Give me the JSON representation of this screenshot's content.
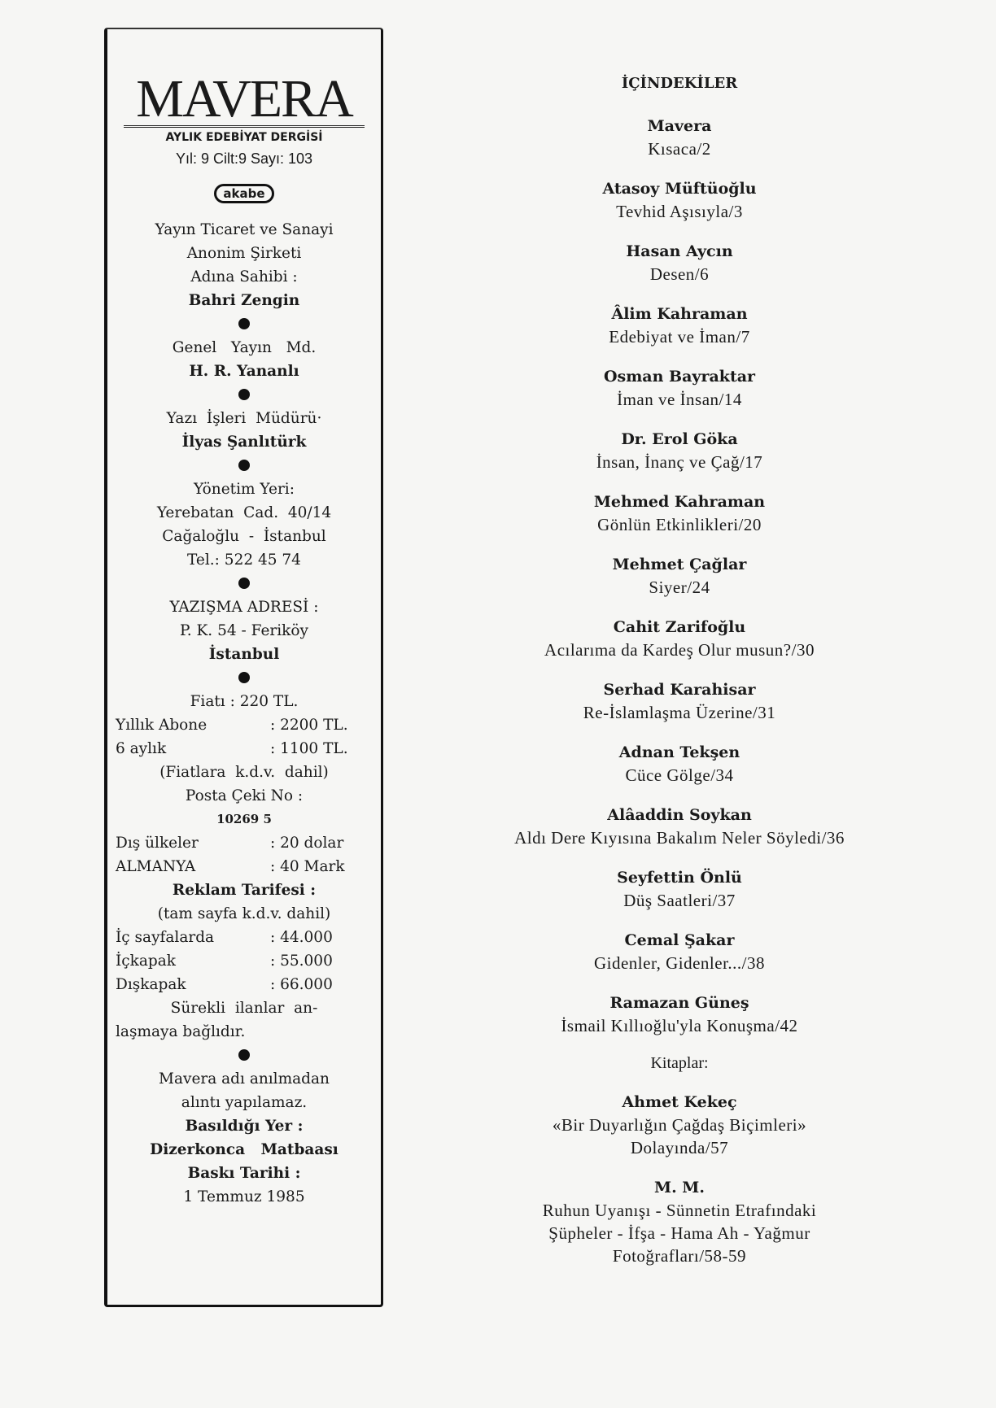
{
  "masthead": {
    "logo": "MAVERA",
    "subtitle": "AYLIK EDEBİYAT DERGİSİ",
    "issue": "Yıl: 9  Cilt:9  Sayı: 103",
    "publisher_logo": "akabe"
  },
  "imprint": {
    "owner_lines": [
      "Yayın Ticaret ve Sanayi",
      "Anonim Şirketi",
      "Adına Sahibi :"
    ],
    "owner": "Bahri Zengin",
    "gm_label": "Genel   Yayın   Md.",
    "gm": "H. R. Yananlı",
    "editor_label": "Yazı  İşleri  Müdürü·",
    "editor": "İlyas Şanlıtürk",
    "office_label": "Yönetim Yeri:",
    "office_lines": [
      "Yerebatan  Cad.  40/14",
      "Cağaloğlu  -  İstanbul",
      "Tel.: 522 45 74"
    ],
    "mail_label": "YAZIŞMA ADRESİ :",
    "mail_lines": [
      "P. K. 54 - Feriköy",
      "İstanbul"
    ],
    "price": "Fiatı : 220 TL.",
    "subs": [
      {
        "k": "Yıllık Abone",
        "v": ": 2200 TL."
      },
      {
        "k": "6 aylık",
        "v": ": 1100 TL."
      }
    ],
    "vat": "(Fiatlara  k.d.v.  dahil)",
    "postal_label": "Posta Çeki No :",
    "postal_no": "10269 5",
    "abroad": [
      {
        "k": "Dış ülkeler",
        "v": ": 20 dolar"
      },
      {
        "k": "ALMANYA",
        "v": ": 40 Mark"
      }
    ],
    "ad_label": "Reklam Tarifesi :",
    "ad_note": "(tam sayfa k.d.v. dahil)",
    "ads": [
      {
        "k": "İç sayfalarda",
        "v": ": 44.000"
      },
      {
        "k": "İçkapak",
        "v": ": 55.000"
      },
      {
        "k": "Dışkapak",
        "v": ": 66.000"
      }
    ],
    "ads_note": [
      "Sürekli  ilanlar  an-",
      "laşmaya bağlıdır."
    ],
    "quote_note": [
      "Mavera adı anılmadan",
      "alıntı yapılamaz."
    ],
    "printer_label": "Basıldığı Yer :",
    "printer": "Dizerkonca   Matbaası",
    "date_label": "Baskı Tarihi :",
    "date": "1 Temmuz 1985"
  },
  "toc": {
    "heading": "İÇİNDEKİLER",
    "entries": [
      {
        "author": "Mavera",
        "title": "Kısaca/2"
      },
      {
        "author": "Atasoy Müftüoğlu",
        "title": "Tevhid Aşısıyla/3"
      },
      {
        "author": "Hasan Aycın",
        "title": "Desen/6"
      },
      {
        "author": "Âlim Kahraman",
        "title": "Edebiyat ve İman/7"
      },
      {
        "author": "Osman Bayraktar",
        "title": "İman ve İnsan/14"
      },
      {
        "author": "Dr. Erol Göka",
        "title": "İnsan, İnanç ve Çağ/17"
      },
      {
        "author": "Mehmed Kahraman",
        "title": "Gönlün Etkinlikleri/20"
      },
      {
        "author": "Mehmet Çağlar",
        "title": "Siyer/24"
      },
      {
        "author": "Cahit Zarifoğlu",
        "title": "Acılarıma da Kardeş Olur musun?/30"
      },
      {
        "author": "Serhad Karahisar",
        "title": "Re-İslamlaşma Üzerine/31"
      },
      {
        "author": "Adnan Tekşen",
        "title": "Cüce Gölge/34"
      },
      {
        "author": "Alâaddin Soykan",
        "title": "Aldı Dere Kıyısına Bakalım Neler Söyledi/36"
      },
      {
        "author": "Seyfettin Önlü",
        "title": "Düş Saatleri/37"
      },
      {
        "author": "Cemal Şakar",
        "title": "Gidenler, Gidenler.../38"
      },
      {
        "author": "Ramazan Güneş",
        "title": "İsmail Kıllıoğlu'yla Konuşma/42"
      }
    ],
    "books_label": "Kitaplar:",
    "books": [
      {
        "author": "Ahmet Kekeç",
        "lines": [
          "«Bir Duyarlığın Çağdaş Biçimleri»",
          "Dolayında/57"
        ]
      },
      {
        "author": "M. M.",
        "lines": [
          "Ruhun Uyanışı - Sünnetin Etrafındaki",
          "Şüpheler - İfşa - Hama Ah - Yağmur",
          "Fotoğrafları/58-59"
        ]
      }
    ]
  }
}
